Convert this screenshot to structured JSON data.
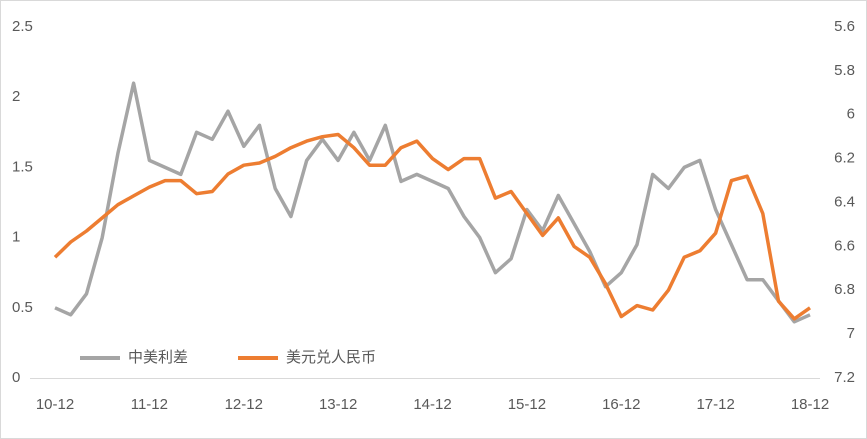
{
  "chart_data": {
    "type": "line",
    "categories": [
      "10-12",
      null,
      null,
      null,
      null,
      null,
      "11-12",
      null,
      null,
      null,
      null,
      null,
      "12-12",
      null,
      null,
      null,
      null,
      null,
      "13-12",
      null,
      null,
      null,
      null,
      null,
      "14-12",
      null,
      null,
      null,
      null,
      null,
      "15-12",
      null,
      null,
      null,
      null,
      null,
      "16-12",
      null,
      null,
      null,
      null,
      null,
      "17-12",
      null,
      null,
      null,
      null,
      null,
      "18-12"
    ],
    "series": [
      {
        "name": "中美利差",
        "color": "#a5a5a5",
        "values": [
          0.5,
          0.45,
          0.6,
          1.0,
          1.6,
          2.1,
          1.55,
          1.5,
          1.45,
          1.75,
          1.7,
          1.9,
          1.65,
          1.8,
          1.35,
          1.15,
          1.55,
          1.7,
          1.55,
          1.75,
          1.55,
          1.8,
          1.4,
          1.45,
          1.4,
          1.35,
          1.15,
          1.0,
          0.75,
          0.85,
          1.2,
          1.05,
          1.3,
          1.1,
          0.9,
          0.65,
          0.75,
          0.95,
          1.45,
          1.35,
          1.5,
          1.55,
          1.2,
          0.95,
          0.7,
          0.7,
          0.55,
          0.4,
          0.45
        ]
      },
      {
        "name": "美元兑人民币",
        "color": "#ed7d31",
        "axis": "y2",
        "values": [
          6.65,
          6.58,
          6.53,
          6.47,
          6.41,
          6.37,
          6.33,
          6.3,
          6.3,
          6.36,
          6.35,
          6.27,
          6.23,
          6.22,
          6.19,
          6.15,
          6.12,
          6.1,
          6.09,
          6.15,
          6.23,
          6.23,
          6.15,
          6.12,
          6.2,
          6.25,
          6.2,
          6.2,
          6.38,
          6.35,
          6.45,
          6.55,
          6.47,
          6.6,
          6.65,
          6.77,
          6.92,
          6.87,
          6.89,
          6.8,
          6.65,
          6.62,
          6.54,
          6.3,
          6.28,
          6.45,
          6.85,
          6.93,
          6.88
        ]
      }
    ],
    "ylim": [
      0,
      2.5
    ],
    "yticks": [
      0,
      0.5,
      1,
      1.5,
      2,
      2.5
    ],
    "y2lim": [
      7.2,
      5.6
    ],
    "y2ticks": [
      5.6,
      5.8,
      6,
      6.2,
      6.4,
      6.6,
      6.8,
      7,
      7.2
    ],
    "grid": false,
    "legend": "bottom-left"
  }
}
